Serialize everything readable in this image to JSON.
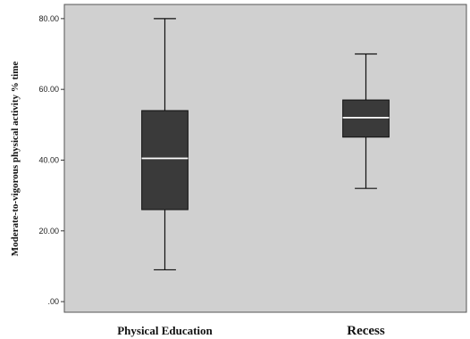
{
  "chart_data": {
    "type": "box",
    "title": "",
    "xlabel": "",
    "ylabel": "Moderate-to-vigorous physical activity % time",
    "ylim": [
      -3,
      84
    ],
    "yticks": [
      0,
      20,
      40,
      60,
      80
    ],
    "ytick_labels": [
      ".00",
      "20.00",
      "40.00",
      "60.00",
      "80.00"
    ],
    "grid": false,
    "background_color": "#d0d0d0",
    "box_color": "#3a3a3a",
    "median_color": "#ffffff",
    "categories": [
      "Physical Education",
      "Recess"
    ],
    "boxes": [
      {
        "category": "Physical Education",
        "min": 9,
        "q1": 26,
        "median": 40.5,
        "q3": 54,
        "max": 80
      },
      {
        "category": "Recess",
        "min": 32,
        "q1": 46.5,
        "median": 52,
        "q3": 57,
        "max": 70
      }
    ]
  }
}
